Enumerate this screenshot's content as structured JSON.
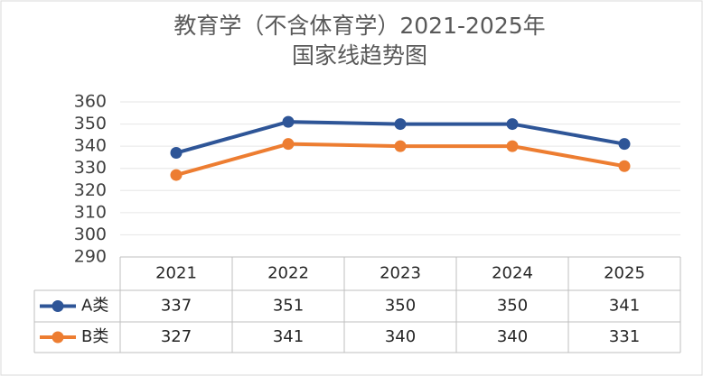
{
  "chart_data": {
    "type": "line",
    "title": "教育学（不含体育学）2021-2025年",
    "subtitle": "国家线趋势图",
    "categories": [
      "2021",
      "2022",
      "2023",
      "2024",
      "2025"
    ],
    "series": [
      {
        "name": "A类",
        "color": "#2e5597",
        "values": [
          337,
          351,
          350,
          350,
          341
        ]
      },
      {
        "name": "B类",
        "color": "#ed7d31",
        "values": [
          327,
          341,
          340,
          340,
          331
        ]
      }
    ],
    "ylim": [
      290,
      360
    ],
    "yticks": [
      290,
      300,
      310,
      320,
      330,
      340,
      350,
      360
    ],
    "grid": true
  }
}
